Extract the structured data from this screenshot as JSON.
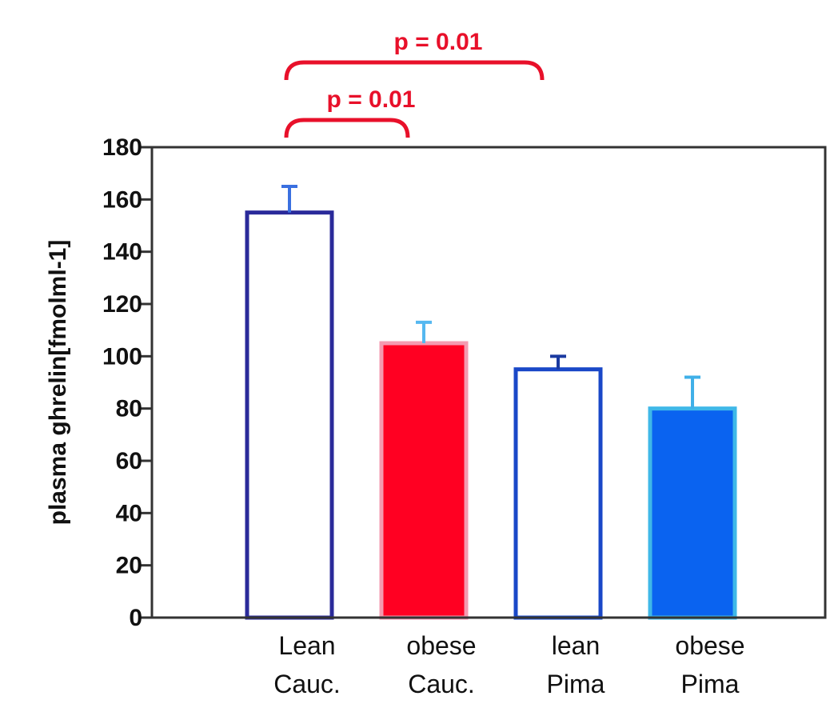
{
  "chart_data": {
    "type": "bar",
    "ylabel": "plasma ghrelin[fmolml-1]",
    "ylim": [
      0,
      180
    ],
    "yticks": [
      0,
      20,
      40,
      60,
      80,
      100,
      120,
      140,
      160,
      180
    ],
    "grid": false,
    "categories": [
      {
        "line1": "Lean",
        "line2": "Cauc."
      },
      {
        "line1": "obese",
        "line2": "Cauc."
      },
      {
        "line1": "lean",
        "line2": "Pima"
      },
      {
        "line1": "obese",
        "line2": "Pima"
      }
    ],
    "values": [
      155,
      105,
      95,
      80
    ],
    "errors": [
      10,
      8,
      5,
      12
    ],
    "bar_fill": [
      "#ffffff",
      "#ff0022",
      "#ffffff",
      "#0a63f0"
    ],
    "bar_stroke": [
      "#2a2a9a",
      "#f49ab0",
      "#1a48c8",
      "#3fb8e8"
    ],
    "error_color": [
      "#3a70e0",
      "#55b8f0",
      "#1a3aa0",
      "#40b0e8"
    ],
    "annotations": [
      {
        "label": "p = 0.01",
        "from": 0,
        "to": 2,
        "color": "#e8102a"
      },
      {
        "label": "p = 0.01",
        "from": 0,
        "to": 1,
        "color": "#e8102a"
      }
    ]
  }
}
